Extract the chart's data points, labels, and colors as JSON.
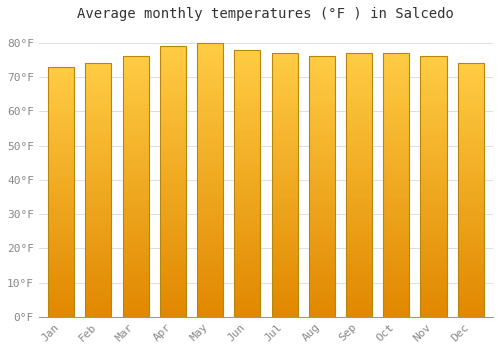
{
  "title": "Average monthly temperatures (°F ) in Salcedo",
  "months": [
    "Jan",
    "Feb",
    "Mar",
    "Apr",
    "May",
    "Jun",
    "Jul",
    "Aug",
    "Sep",
    "Oct",
    "Nov",
    "Dec"
  ],
  "values": [
    73,
    74,
    76,
    79,
    80,
    78,
    77,
    76,
    77,
    77,
    76,
    74
  ],
  "ylim": [
    0,
    84
  ],
  "yticks": [
    0,
    10,
    20,
    30,
    40,
    50,
    60,
    70,
    80
  ],
  "ytick_labels": [
    "0°F",
    "10°F",
    "20°F",
    "30°F",
    "40°F",
    "50°F",
    "60°F",
    "70°F",
    "80°F"
  ],
  "bar_color_top": "#FFC84A",
  "bar_color_bottom": "#E07800",
  "bar_edge_color": "#B8860B",
  "background_color": "#FFFFFF",
  "plot_bg_color": "#FFFFFF",
  "grid_color": "#DDDDDD",
  "title_fontsize": 10,
  "tick_fontsize": 8,
  "title_color": "#333333",
  "tick_color": "#888888",
  "bar_width": 0.7
}
